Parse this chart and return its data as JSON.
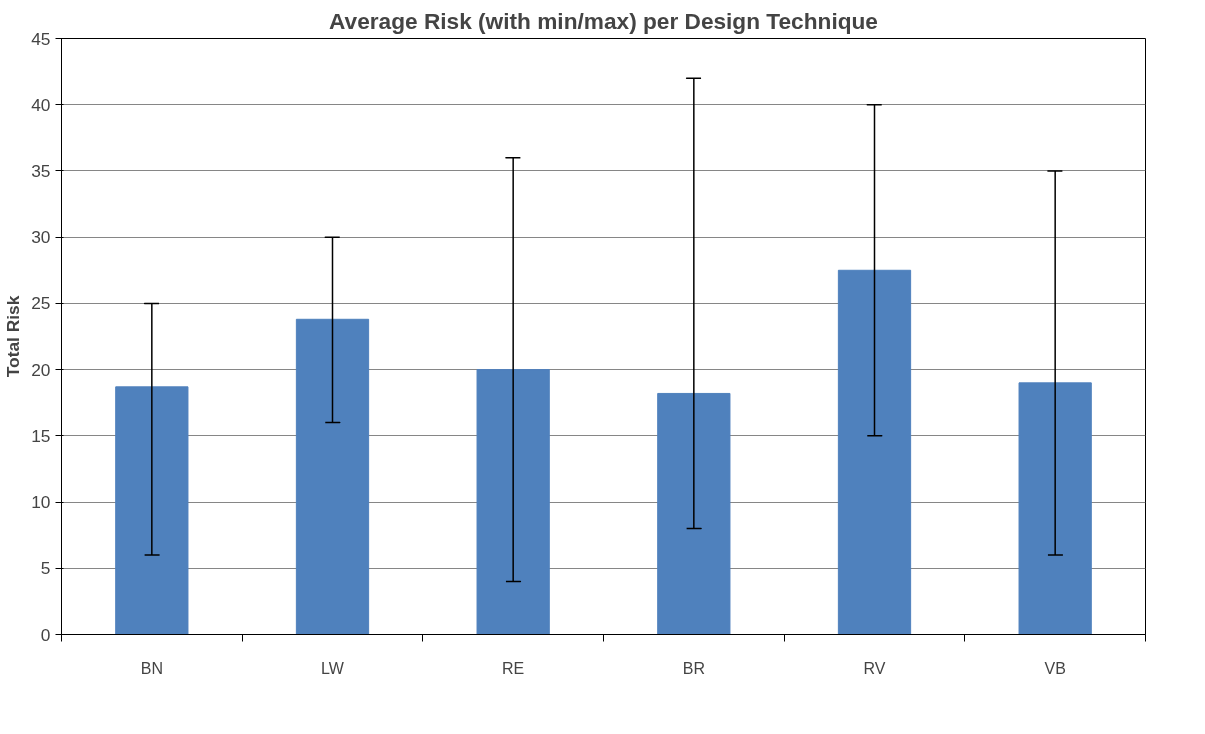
{
  "chart_data": {
    "type": "bar",
    "title": "Average Risk (with min/max) per Design Technique",
    "ylabel": "Total Risk",
    "categories": [
      "BN",
      "LW",
      "RE",
      "BR",
      "RV",
      "VB"
    ],
    "values": [
      18.7,
      23.8,
      20.0,
      18.2,
      27.5,
      19.0
    ],
    "errors": [
      [
        6,
        25
      ],
      [
        16,
        30
      ],
      [
        4,
        36
      ],
      [
        8,
        42
      ],
      [
        15,
        40
      ],
      [
        6,
        35
      ]
    ],
    "color": "#4f81bd",
    "ylim": [
      0,
      45
    ],
    "yticks": [
      0,
      5,
      10,
      15,
      20,
      25,
      30,
      35,
      40,
      45
    ],
    "grid": "y"
  }
}
